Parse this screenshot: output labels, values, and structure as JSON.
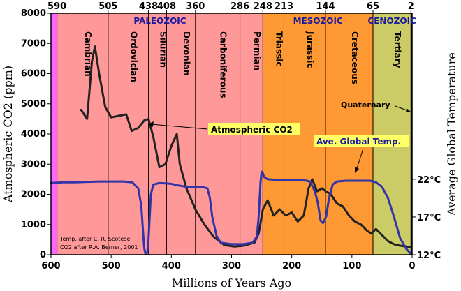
{
  "chart_data": {
    "type": "line",
    "title": "",
    "xlabel": "Millions of Years Ago",
    "ylabel": "Atmospheric CO2 (ppm)",
    "y2label": "Average Global Temperature",
    "xlim": [
      600,
      0
    ],
    "ylim": [
      0,
      8000
    ],
    "x_ticks": [
      "600",
      "500",
      "400",
      "300",
      "200",
      "100",
      "0"
    ],
    "y_ticks": [
      "0",
      "1000",
      "2000",
      "3000",
      "4000",
      "5000",
      "6000",
      "7000",
      "8000"
    ],
    "top_ticks": [
      {
        "value": 590,
        "label": "590"
      },
      {
        "value": 505,
        "label": "505"
      },
      {
        "value": 438,
        "label": "438"
      },
      {
        "value": 408,
        "label": "408"
      },
      {
        "value": 360,
        "label": "360"
      },
      {
        "value": 286,
        "label": "286"
      },
      {
        "value": 248,
        "label": "248"
      },
      {
        "value": 213,
        "label": "213"
      },
      {
        "value": 144,
        "label": "144"
      },
      {
        "value": 65,
        "label": "65"
      },
      {
        "value": 2,
        "label": "2"
      }
    ],
    "temp_ticks": [
      {
        "value": 22,
        "label": "22°C"
      },
      {
        "value": 17,
        "label": "17°C"
      },
      {
        "value": 12,
        "label": "12°C"
      }
    ],
    "temp_scale": {
      "ppm_at_12": 0,
      "ppm_per_degree": 250
    },
    "eras": [
      {
        "name": "PALEOZOIC",
        "from": 590,
        "to": 248,
        "color": "#ff9999"
      },
      {
        "name": "MESOZOIC",
        "from": 248,
        "to": 65,
        "color": "#ff9933"
      },
      {
        "name": "CENOZOIC",
        "from": 65,
        "to": 2,
        "color": "#cccc66"
      }
    ],
    "precambrian": {
      "from": 600,
      "to": 590,
      "color": "#ff66ff"
    },
    "quaternary": {
      "from": 2,
      "to": 0,
      "color": "#000000"
    },
    "periods": [
      {
        "name": "Cambrian",
        "from": 590,
        "to": 505
      },
      {
        "name": "Ordovician",
        "from": 505,
        "to": 438
      },
      {
        "name": "Silurian",
        "from": 438,
        "to": 408
      },
      {
        "name": "Devonian",
        "from": 408,
        "to": 360
      },
      {
        "name": "Carboniferous",
        "from": 360,
        "to": 286
      },
      {
        "name": "Permian",
        "from": 286,
        "to": 248
      },
      {
        "name": "Triassic",
        "from": 248,
        "to": 213
      },
      {
        "name": "Jurassic",
        "from": 213,
        "to": 144
      },
      {
        "name": "Cretaceous",
        "from": 144,
        "to": 65
      },
      {
        "name": "Tertiary",
        "from": 65,
        "to": 2
      }
    ],
    "series": [
      {
        "name": "Atmospheric CO2",
        "color": "#222222",
        "points": [
          [
            550,
            4800
          ],
          [
            540,
            4500
          ],
          [
            532,
            6400
          ],
          [
            527,
            6900
          ],
          [
            520,
            6000
          ],
          [
            510,
            4900
          ],
          [
            500,
            4550
          ],
          [
            488,
            4600
          ],
          [
            475,
            4650
          ],
          [
            466,
            4100
          ],
          [
            455,
            4200
          ],
          [
            445,
            4450
          ],
          [
            438,
            4500
          ],
          [
            430,
            3900
          ],
          [
            420,
            2900
          ],
          [
            410,
            3000
          ],
          [
            400,
            3600
          ],
          [
            391,
            4000
          ],
          [
            386,
            3000
          ],
          [
            375,
            2200
          ],
          [
            360,
            1500
          ],
          [
            345,
            1000
          ],
          [
            330,
            600
          ],
          [
            312,
            320
          ],
          [
            295,
            270
          ],
          [
            280,
            300
          ],
          [
            262,
            400
          ],
          [
            255,
            700
          ],
          [
            248,
            1500
          ],
          [
            240,
            1800
          ],
          [
            230,
            1300
          ],
          [
            220,
            1500
          ],
          [
            210,
            1300
          ],
          [
            200,
            1400
          ],
          [
            190,
            1100
          ],
          [
            180,
            1300
          ],
          [
            172,
            2200
          ],
          [
            166,
            2500
          ],
          [
            158,
            2100
          ],
          [
            150,
            2200
          ],
          [
            143,
            2100
          ],
          [
            135,
            2000
          ],
          [
            125,
            1700
          ],
          [
            115,
            1600
          ],
          [
            105,
            1300
          ],
          [
            95,
            1100
          ],
          [
            85,
            1000
          ],
          [
            75,
            800
          ],
          [
            68,
            700
          ],
          [
            60,
            850
          ],
          [
            50,
            650
          ],
          [
            40,
            450
          ],
          [
            30,
            350
          ],
          [
            20,
            300
          ],
          [
            12,
            280
          ],
          [
            5,
            260
          ],
          [
            2,
            270
          ]
        ]
      },
      {
        "name": "Ave. Global Temp.",
        "color": "#3333aa",
        "points": [
          [
            600,
            21.5
          ],
          [
            580,
            21.6
          ],
          [
            560,
            21.6
          ],
          [
            520,
            21.7
          ],
          [
            480,
            21.7
          ],
          [
            465,
            21.6
          ],
          [
            455,
            20.8
          ],
          [
            450,
            18.5
          ],
          [
            447,
            15
          ],
          [
            445,
            12.8
          ],
          [
            443,
            12.1
          ],
          [
            440,
            12.3
          ],
          [
            438,
            14
          ],
          [
            436,
            17
          ],
          [
            434,
            20
          ],
          [
            430,
            21.3
          ],
          [
            420,
            21.5
          ],
          [
            400,
            21.4
          ],
          [
            390,
            21.2
          ],
          [
            375,
            21
          ],
          [
            350,
            21
          ],
          [
            340,
            20.8
          ],
          [
            336,
            19.5
          ],
          [
            332,
            17
          ],
          [
            325,
            14.5
          ],
          [
            318,
            13.6
          ],
          [
            300,
            13.4
          ],
          [
            280,
            13.4
          ],
          [
            265,
            13.6
          ],
          [
            258,
            14.4
          ],
          [
            255,
            17
          ],
          [
            252,
            21.5
          ],
          [
            250,
            23
          ],
          [
            248,
            22.8
          ],
          [
            246,
            22.3
          ],
          [
            240,
            22
          ],
          [
            220,
            21.9
          ],
          [
            200,
            21.9
          ],
          [
            185,
            21.9
          ],
          [
            175,
            21.8
          ],
          [
            170,
            21.7
          ],
          [
            162,
            20.5
          ],
          [
            157,
            19
          ],
          [
            152,
            16.5
          ],
          [
            148,
            16.2
          ],
          [
            143,
            17
          ],
          [
            138,
            19.5
          ],
          [
            132,
            21.3
          ],
          [
            125,
            21.7
          ],
          [
            110,
            21.8
          ],
          [
            90,
            21.8
          ],
          [
            70,
            21.8
          ],
          [
            60,
            21.6
          ],
          [
            50,
            21
          ],
          [
            40,
            19.5
          ],
          [
            30,
            17
          ],
          [
            20,
            14.2
          ],
          [
            10,
            12.8
          ],
          [
            4,
            12.3
          ],
          [
            2,
            12.1
          ]
        ]
      }
    ],
    "annotations": [
      {
        "text": "Atmospheric CO2",
        "x": 440,
        "y": 4350,
        "bg": "#ffff66"
      },
      {
        "text": "Ave. Global Temp.",
        "x": 155,
        "y": 23,
        "bg": "#ffff66"
      },
      {
        "text": "Quaternary",
        "x": 2,
        "y": 19.5,
        "bg": ""
      }
    ],
    "credits": [
      "Temp. after C. R. Scotese",
      "CO2 after R.A. Berner, 2001"
    ]
  }
}
